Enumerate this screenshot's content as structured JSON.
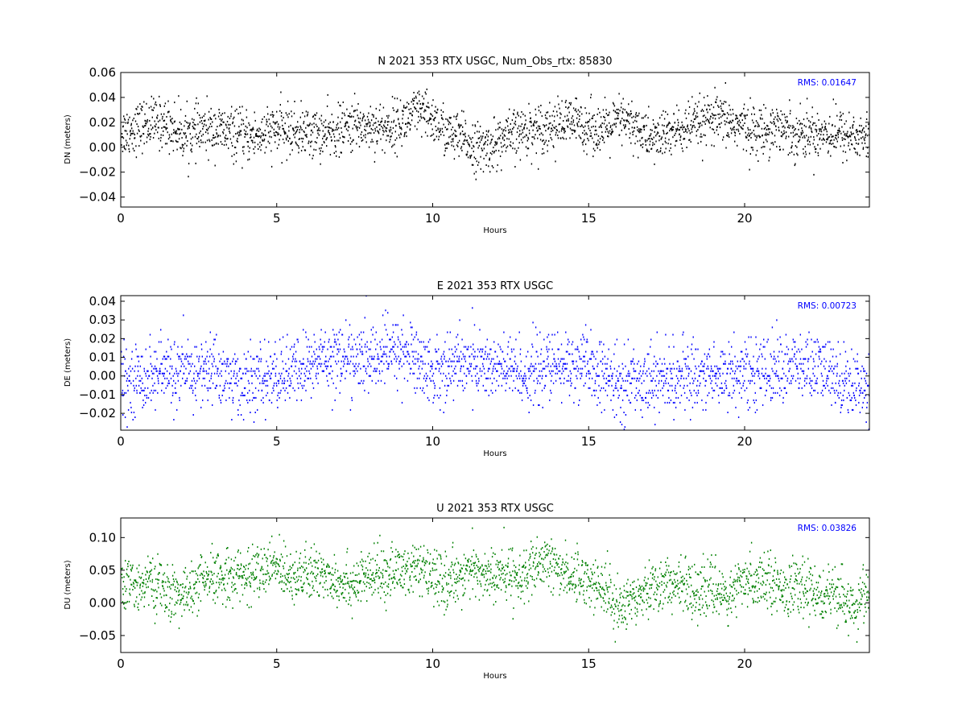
{
  "chart_data": [
    {
      "type": "scatter",
      "title": "N 2021 353 RTX  USGC, Num_Obs_rtx: 85830",
      "xlabel": "Hours",
      "ylabel": "DN (meters)",
      "xlim": [
        0,
        24
      ],
      "ylim": [
        -0.048,
        0.06
      ],
      "xticks": [
        0,
        5,
        10,
        15,
        20
      ],
      "xtick_labels": [
        "0",
        "5",
        "10",
        "15",
        "20"
      ],
      "yticks": [
        -0.04,
        -0.02,
        0.0,
        0.02,
        0.04,
        0.06
      ],
      "ytick_labels": [
        "−0.04",
        "−0.02",
        "0.00",
        "0.02",
        "0.04",
        "0.06"
      ],
      "rms_label": "RMS:  0.01647",
      "rms_color": "#0000ff",
      "point_color": "#000000",
      "grid": false,
      "series": [
        {
          "x": [
            0,
            0.5,
            1,
            1.5,
            2,
            2.5,
            3,
            3.5,
            4,
            4.5,
            5,
            5.5,
            6,
            6.5,
            7,
            7.5,
            8,
            8.5,
            9,
            9.5,
            10,
            10.5,
            11,
            11.5,
            12,
            12.5,
            13,
            13.5,
            14,
            14.5,
            15,
            15.5,
            16,
            16.5,
            17,
            17.5,
            18,
            18.5,
            19,
            19.5,
            20,
            20.5,
            21,
            21.5,
            22,
            22.5,
            23,
            23.5,
            24
          ],
          "y": [
            0.012,
            0.016,
            0.02,
            0.018,
            0.01,
            0.013,
            0.014,
            0.011,
            0.008,
            0.01,
            0.014,
            0.013,
            0.012,
            0.01,
            0.013,
            0.018,
            0.017,
            0.015,
            0.02,
            0.028,
            0.022,
            0.01,
            0.006,
            -0.002,
            0.003,
            0.009,
            0.014,
            0.016,
            0.018,
            0.02,
            0.017,
            0.013,
            0.022,
            0.016,
            0.006,
            0.011,
            0.014,
            0.018,
            0.022,
            0.02,
            0.016,
            0.012,
            0.018,
            0.012,
            0.011,
            0.012,
            0.011,
            0.009,
            0.007
          ],
          "spread": 0.022
        }
      ]
    },
    {
      "type": "scatter",
      "title": "E 2021 353 RTX  USGC",
      "xlabel": "Hours",
      "ylabel": "DE (meters)",
      "xlim": [
        0,
        24
      ],
      "ylim": [
        -0.029,
        0.043
      ],
      "xticks": [
        0,
        5,
        10,
        15,
        20
      ],
      "xtick_labels": [
        "0",
        "5",
        "10",
        "15",
        "20"
      ],
      "yticks": [
        -0.02,
        -0.01,
        0.0,
        0.01,
        0.02,
        0.03,
        0.04
      ],
      "ytick_labels": [
        "−0.02",
        "−0.01",
        "0.00",
        "0.01",
        "0.02",
        "0.03",
        "0.04"
      ],
      "rms_label": "RMS:  0.00723",
      "rms_color": "#0000ff",
      "point_color": "#0000ff",
      "grid": false,
      "series": [
        {
          "x": [
            0,
            0.5,
            1,
            1.5,
            2,
            2.5,
            3,
            3.5,
            4,
            4.5,
            5,
            5.5,
            6,
            6.5,
            7,
            7.5,
            8,
            8.5,
            9,
            9.5,
            10,
            10.5,
            11,
            11.5,
            12,
            12.5,
            13,
            13.5,
            14,
            14.5,
            15,
            15.5,
            16,
            16.5,
            17,
            17.5,
            18,
            18.5,
            19,
            19.5,
            20,
            20.5,
            21,
            21.5,
            22,
            22.5,
            23,
            23.5,
            24
          ],
          "y": [
            -0.004,
            -0.002,
            0.001,
            0.002,
            0.001,
            0.002,
            0.004,
            -0.002,
            -0.004,
            -0.002,
            0.0,
            0.002,
            0.005,
            0.01,
            0.01,
            0.008,
            0.009,
            0.012,
            0.014,
            0.008,
            0.002,
            0.005,
            0.008,
            0.006,
            0.004,
            0.003,
            0.001,
            0.004,
            0.005,
            0.006,
            0.004,
            -0.001,
            -0.005,
            -0.002,
            -0.001,
            -0.002,
            -0.001,
            0.001,
            0.0,
            0.002,
            0.001,
            0.002,
            0.004,
            0.005,
            0.004,
            0.003,
            -0.001,
            -0.004,
            -0.005
          ],
          "spread": 0.02
        }
      ]
    },
    {
      "type": "scatter",
      "title": "U 2021 353 RTX  USGC",
      "xlabel": "Hours",
      "ylabel": "DU (meters)",
      "xlim": [
        0,
        24
      ],
      "ylim": [
        -0.076,
        0.13
      ],
      "xticks": [
        0,
        5,
        10,
        15,
        20
      ],
      "xtick_labels": [
        "0",
        "5",
        "10",
        "15",
        "20"
      ],
      "yticks": [
        -0.05,
        0.0,
        0.05,
        0.1
      ],
      "ytick_labels": [
        "−0.05",
        "0.00",
        "0.05",
        "0.10"
      ],
      "rms_label": "RMS:  0.03826",
      "rms_color": "#0000ff",
      "point_color": "#008000",
      "grid": false,
      "series": [
        {
          "x": [
            0,
            0.5,
            1,
            1.5,
            2,
            2.5,
            3,
            3.5,
            4,
            4.5,
            5,
            5.5,
            6,
            6.5,
            7,
            7.5,
            8,
            8.5,
            9,
            9.5,
            10,
            10.5,
            11,
            11.5,
            12,
            12.5,
            13,
            13.5,
            14,
            14.5,
            15,
            15.5,
            16,
            16.5,
            17,
            17.5,
            18,
            18.5,
            19,
            19.5,
            20,
            20.5,
            21,
            21.5,
            22,
            22.5,
            23,
            23.5,
            24
          ],
          "y": [
            0.02,
            0.03,
            0.03,
            0.015,
            0.01,
            0.03,
            0.035,
            0.045,
            0.04,
            0.05,
            0.055,
            0.045,
            0.04,
            0.045,
            0.035,
            0.03,
            0.04,
            0.045,
            0.05,
            0.05,
            0.04,
            0.03,
            0.05,
            0.045,
            0.04,
            0.045,
            0.04,
            0.06,
            0.055,
            0.04,
            0.035,
            0.02,
            -0.01,
            0.015,
            0.025,
            0.03,
            0.025,
            0.02,
            0.02,
            0.01,
            0.03,
            0.04,
            0.03,
            0.02,
            0.02,
            0.015,
            0.005,
            -0.005,
            0.02
          ],
          "spread": 0.045
        }
      ]
    }
  ]
}
